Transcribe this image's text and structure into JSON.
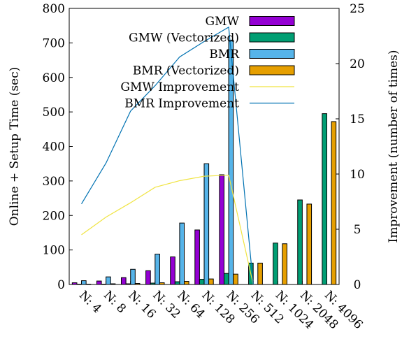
{
  "chart_data": {
    "type": "bar",
    "title": "",
    "xlabel": "",
    "ylabel": "Online + Setup Time (sec)",
    "y2label": "Improvement (number of times)",
    "ylim": [
      0,
      800
    ],
    "y2lim": [
      0,
      25
    ],
    "yticks": [
      "0",
      "100",
      "200",
      "300",
      "400",
      "500",
      "600",
      "700",
      "800"
    ],
    "y2ticks": [
      "0",
      "5",
      "10",
      "15",
      "20",
      "25"
    ],
    "categories": [
      "N: 4",
      "N: 8",
      "N: 16",
      "N: 32",
      "N: 64",
      "N: 128",
      "N: 256",
      "N: 512",
      "N: 1024",
      "N: 2048",
      "N: 4096"
    ],
    "legend_position": "top-right",
    "grid": false,
    "series": [
      {
        "name": "GMW",
        "kind": "bar",
        "color": "#9400d3",
        "values": [
          5,
          10,
          20,
          40,
          80,
          158,
          318,
          null,
          null,
          null,
          null
        ]
      },
      {
        "name": "GMW (Vectorized)",
        "kind": "bar",
        "color": "#009e73",
        "values": [
          1,
          1,
          2,
          4,
          8,
          15,
          32,
          62,
          120,
          245,
          495
        ]
      },
      {
        "name": "BMR",
        "kind": "bar",
        "color": "#56b4e9",
        "values": [
          11,
          22,
          44,
          88,
          178,
          350,
          708,
          null,
          null,
          null,
          null
        ]
      },
      {
        "name": "BMR (Vectorized)",
        "kind": "bar",
        "color": "#e69f00",
        "values": [
          1,
          2,
          3,
          5,
          9,
          16,
          30,
          62,
          118,
          233,
          472
        ]
      },
      {
        "name": "GMW Improvement",
        "kind": "line",
        "axis": "y2",
        "color": "#f0e442",
        "values": [
          4.5,
          6.1,
          7.4,
          8.8,
          9.4,
          9.8,
          9.9,
          0,
          null,
          null,
          null
        ]
      },
      {
        "name": "BMR Improvement",
        "kind": "line",
        "axis": "y2",
        "color": "#0072b2",
        "values": [
          7.3,
          11.0,
          15.7,
          18.0,
          20.6,
          22.0,
          23.3,
          0,
          null,
          null,
          null
        ]
      }
    ]
  }
}
